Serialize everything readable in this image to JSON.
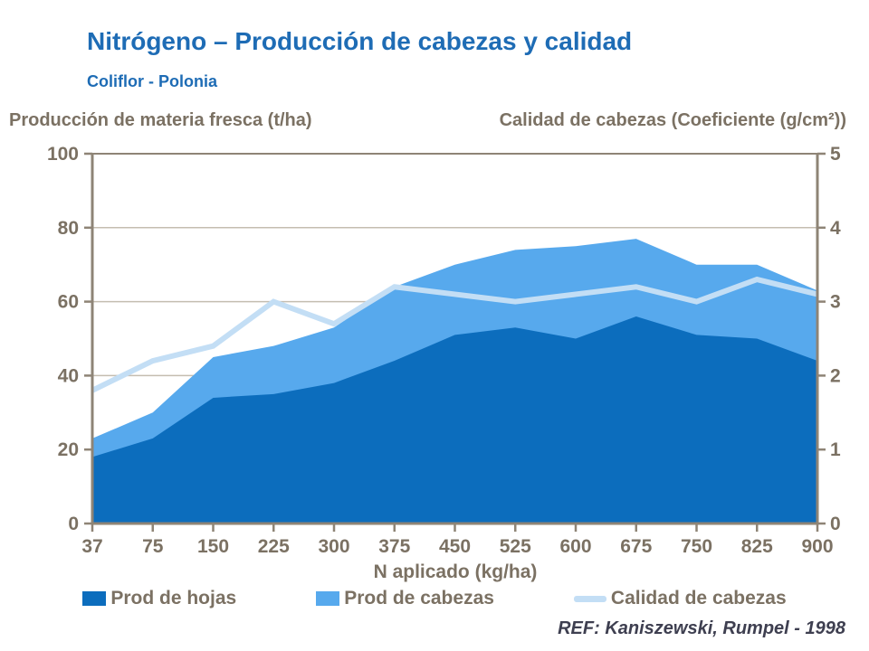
{
  "header": {
    "title": "Nitrógeno – Producción de cabezas y calidad",
    "subtitle": "Coliflor - Polonia"
  },
  "axis_titles": {
    "left": "Producción de materia fresca (t/ha)",
    "right": "Calidad de cabezas (Coeficiente (g/cm²))"
  },
  "xlabel": "N aplicado (kg/ha)",
  "footer": {
    "ref": "REF: Kaniszewski, Rumpel - 1998"
  },
  "colors": {
    "title_blue": "#1e6cb5",
    "label_brown": "#7b7163",
    "axis_line": "#8e8476",
    "gridline": "#c4bdb0",
    "dark_blue": "#0c6dbd",
    "mid_blue": "#57a9ed",
    "pale_blue": "#c3def5",
    "footer_text": "#3e3f50"
  },
  "chart_data": {
    "type": "area",
    "subtype": "stacked-areas-with-line",
    "title": "Nitrógeno – Producción de cabezas y calidad",
    "subtitle": "Coliflor - Polonia",
    "categories": [
      37,
      75,
      150,
      225,
      300,
      375,
      450,
      525,
      600,
      675,
      750,
      825,
      900
    ],
    "xlabel": "N aplicado (kg/ha)",
    "grid": true,
    "legend_position": "bottom",
    "left_axis": {
      "label": "Producción de materia fresca (t/ha)",
      "min": 0,
      "max": 100,
      "ticks": [
        0,
        20,
        40,
        60,
        80,
        100
      ]
    },
    "right_axis": {
      "label": "Calidad de cabezas (Coeficiente (g/cm²))",
      "min": 0,
      "max": 5,
      "ticks": [
        0,
        1,
        2,
        3,
        4,
        5
      ]
    },
    "series": [
      {
        "name": "Prod de hojas",
        "type": "area",
        "stacked": true,
        "axis": "left",
        "color": "#0c6dbd",
        "values": [
          18,
          23,
          34,
          35,
          38,
          44,
          51,
          53,
          50,
          56,
          51,
          50,
          44
        ]
      },
      {
        "name": "Prod de cabezas",
        "type": "area",
        "stacked": true,
        "axis": "left",
        "color": "#57a9ed",
        "values": [
          5,
          7,
          11,
          13,
          15,
          20,
          19,
          21,
          25,
          21,
          19,
          20,
          19
        ],
        "stack_top_totals": [
          23,
          30,
          45,
          48,
          53,
          64,
          70,
          74,
          75,
          77,
          70,
          70,
          63
        ]
      },
      {
        "name": "Calidad de cabezas",
        "type": "line",
        "stacked": false,
        "axis": "right",
        "color": "#c3def5",
        "values": [
          1.8,
          2.2,
          2.4,
          3.0,
          2.7,
          3.2,
          3.1,
          3.0,
          3.1,
          3.2,
          3.0,
          3.3,
          3.1
        ]
      }
    ]
  }
}
